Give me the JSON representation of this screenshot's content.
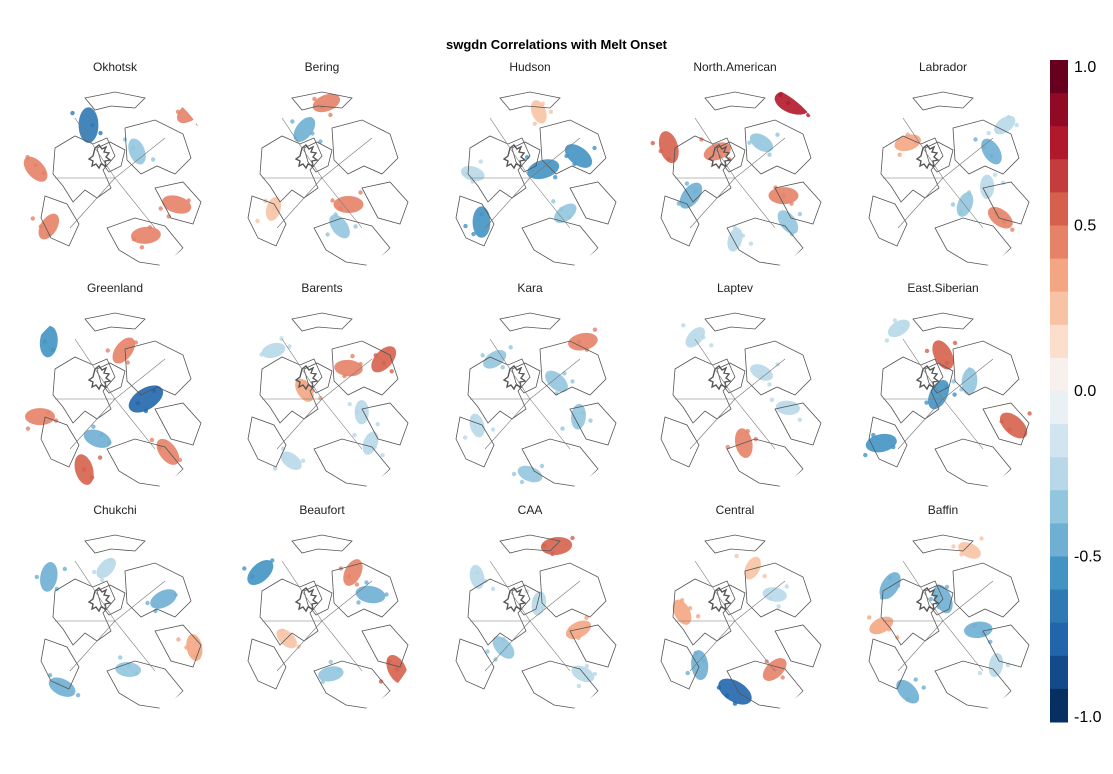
{
  "chart_data": {
    "type": "heatmap",
    "title": "swgdn Correlations with Melt Onset",
    "projection": "north-polar stereographic",
    "panels": [
      {
        "name": "Okhotsk",
        "blobs": [
          [
            -0.3,
            0.6,
            -0.7
          ],
          [
            0.85,
            0.75,
            0.5
          ],
          [
            0.7,
            -0.3,
            0.5
          ],
          [
            0.25,
            0.3,
            -0.4
          ],
          [
            -0.75,
            -0.55,
            0.45
          ],
          [
            0.35,
            -0.65,
            0.5
          ],
          [
            -0.9,
            0.1,
            0.5
          ]
        ]
      },
      {
        "name": "Bering",
        "blobs": [
          [
            -0.2,
            0.55,
            -0.45
          ],
          [
            0.3,
            -0.3,
            0.5
          ],
          [
            0.2,
            -0.55,
            -0.4
          ],
          [
            -0.55,
            -0.35,
            0.3
          ],
          [
            0.05,
            0.85,
            0.45
          ]
        ]
      },
      {
        "name": "Hudson",
        "blobs": [
          [
            0.15,
            0.1,
            -0.6
          ],
          [
            0.55,
            0.25,
            -0.55
          ],
          [
            -0.55,
            -0.5,
            -0.55
          ],
          [
            0.4,
            -0.4,
            -0.35
          ],
          [
            -0.65,
            0.05,
            -0.3
          ],
          [
            0.1,
            0.75,
            0.3
          ]
        ]
      },
      {
        "name": "North.American",
        "blobs": [
          [
            0.65,
            0.85,
            0.75
          ],
          [
            -0.75,
            0.35,
            0.6
          ],
          [
            -0.5,
            -0.2,
            -0.5
          ],
          [
            0.55,
            -0.2,
            0.5
          ],
          [
            0.6,
            -0.5,
            -0.4
          ],
          [
            0.0,
            -0.7,
            -0.3
          ],
          [
            -0.2,
            0.3,
            0.45
          ],
          [
            0.3,
            0.4,
            -0.35
          ]
        ]
      },
      {
        "name": "Labrador",
        "blobs": [
          [
            0.55,
            0.3,
            -0.45
          ],
          [
            0.25,
            -0.3,
            -0.35
          ],
          [
            -0.4,
            0.4,
            0.4
          ],
          [
            0.65,
            -0.45,
            0.45
          ],
          [
            0.5,
            -0.1,
            -0.3
          ],
          [
            0.7,
            0.6,
            -0.3
          ]
        ]
      },
      {
        "name": "Greenland",
        "blobs": [
          [
            -0.75,
            0.65,
            -0.55
          ],
          [
            0.35,
            0.0,
            -0.8
          ],
          [
            -0.2,
            -0.45,
            -0.45
          ],
          [
            -0.35,
            -0.8,
            0.55
          ],
          [
            0.1,
            0.55,
            0.5
          ],
          [
            -0.85,
            -0.2,
            0.5
          ],
          [
            0.6,
            -0.6,
            0.5
          ]
        ]
      },
      {
        "name": "Barents",
        "blobs": [
          [
            0.7,
            0.45,
            0.55
          ],
          [
            0.3,
            0.35,
            0.45
          ],
          [
            -0.2,
            0.1,
            0.35
          ],
          [
            0.55,
            -0.5,
            -0.3
          ],
          [
            -0.55,
            0.55,
            -0.3
          ],
          [
            -0.35,
            -0.7,
            -0.3
          ],
          [
            0.45,
            -0.15,
            -0.3
          ]
        ]
      },
      {
        "name": "Kara",
        "blobs": [
          [
            0.6,
            0.65,
            0.5
          ],
          [
            0.3,
            0.2,
            -0.4
          ],
          [
            0.55,
            -0.2,
            -0.35
          ],
          [
            -0.4,
            0.45,
            -0.35
          ],
          [
            0.0,
            -0.85,
            -0.35
          ],
          [
            -0.6,
            -0.3,
            -0.3
          ]
        ]
      },
      {
        "name": "Laptev",
        "blobs": [
          [
            0.3,
            0.3,
            -0.3
          ],
          [
            0.1,
            -0.5,
            0.5
          ],
          [
            -0.45,
            0.7,
            -0.3
          ],
          [
            0.6,
            -0.1,
            -0.3
          ]
        ]
      },
      {
        "name": "East.Siberian",
        "blobs": [
          [
            0.0,
            0.5,
            0.55
          ],
          [
            -0.05,
            0.05,
            -0.55
          ],
          [
            -0.7,
            -0.5,
            -0.55
          ],
          [
            0.8,
            -0.3,
            0.6
          ],
          [
            0.3,
            0.2,
            -0.4
          ],
          [
            -0.5,
            0.8,
            -0.3
          ]
        ]
      },
      {
        "name": "Chukchi",
        "blobs": [
          [
            -0.75,
            0.5,
            -0.5
          ],
          [
            0.55,
            0.25,
            -0.45
          ],
          [
            -0.6,
            -0.75,
            -0.45
          ],
          [
            0.9,
            -0.3,
            0.4
          ],
          [
            -0.1,
            0.6,
            -0.3
          ],
          [
            0.15,
            -0.55,
            -0.35
          ]
        ]
      },
      {
        "name": "Beaufort",
        "blobs": [
          [
            -0.7,
            0.55,
            -0.55
          ],
          [
            0.55,
            0.3,
            -0.5
          ],
          [
            0.85,
            -0.55,
            0.55
          ],
          [
            0.35,
            0.55,
            0.45
          ],
          [
            0.1,
            -0.6,
            -0.35
          ],
          [
            -0.4,
            -0.2,
            0.3
          ]
        ]
      },
      {
        "name": "CAA",
        "blobs": [
          [
            0.3,
            0.85,
            0.55
          ],
          [
            -0.3,
            -0.3,
            -0.4
          ],
          [
            0.1,
            0.2,
            -0.3
          ],
          [
            0.55,
            -0.1,
            0.4
          ],
          [
            0.6,
            -0.6,
            -0.3
          ],
          [
            -0.6,
            0.5,
            -0.3
          ]
        ]
      },
      {
        "name": "Central",
        "blobs": [
          [
            0.0,
            -0.8,
            -0.75
          ],
          [
            -0.4,
            -0.5,
            -0.5
          ],
          [
            0.45,
            -0.55,
            0.45
          ],
          [
            0.45,
            0.3,
            -0.3
          ],
          [
            -0.6,
            0.1,
            0.4
          ],
          [
            0.2,
            0.6,
            0.3
          ]
        ]
      },
      {
        "name": "Baffin",
        "blobs": [
          [
            0.0,
            0.25,
            -0.5
          ],
          [
            -0.6,
            0.4,
            -0.5
          ],
          [
            0.4,
            -0.1,
            -0.45
          ],
          [
            -0.4,
            -0.8,
            -0.45
          ],
          [
            0.6,
            -0.5,
            -0.3
          ],
          [
            -0.7,
            -0.05,
            0.35
          ],
          [
            0.3,
            0.8,
            0.3
          ]
        ]
      }
    ],
    "colorbar": {
      "range": [
        -1.0,
        1.0
      ],
      "ticks": [
        "1.0",
        "0.5",
        "0.0",
        "-0.5",
        "-1.0"
      ],
      "colors": [
        "#67001f",
        "#900a25",
        "#b2182b",
        "#c43c3c",
        "#d6604d",
        "#e58268",
        "#f4a582",
        "#f8c3a5",
        "#fbdfcc",
        "#f7f0ec",
        "#eaf1f5",
        "#d1e5f0",
        "#b8d8e9",
        "#92c5de",
        "#6fafd3",
        "#4393c3",
        "#2f79b5",
        "#2166ac",
        "#134a89",
        "#053061"
      ]
    }
  }
}
